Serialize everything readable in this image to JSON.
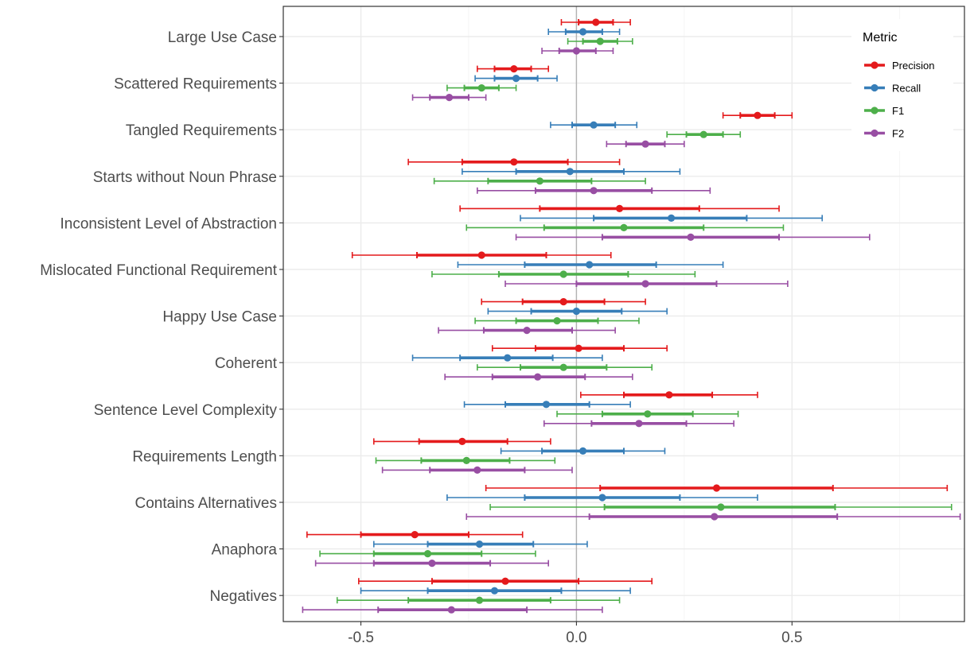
{
  "chart_data": {
    "type": "errorbar",
    "title": "",
    "xlabel": "",
    "ylabel": "",
    "xlim": [
      -0.68,
      0.9
    ],
    "xticks": [
      -0.5,
      0.0,
      0.5
    ],
    "xtick_labels": [
      "-0.5",
      "0.0",
      "0.5"
    ],
    "grid": true,
    "reference_line_x": 0,
    "legend": {
      "title": "Metric",
      "placement": "top-right"
    },
    "categories": [
      "Large Use Case",
      "Scattered Requirements",
      "Tangled Requirements",
      "Starts without Noun Phrase",
      "Inconsistent Level of Abstraction",
      "Mislocated Functional Requirement",
      "Happy Use Case",
      "Coherent",
      "Sentence Level Complexity",
      "Requirements Length",
      "Contains Alternatives",
      "Anaphora",
      "Negatives"
    ],
    "series": [
      {
        "name": "Precision",
        "color": "#E41A1C",
        "points": [
          {
            "estimate": 0.045,
            "inner": [
              0.005,
              0.085
            ],
            "outer": [
              -0.035,
              0.125
            ]
          },
          {
            "estimate": -0.145,
            "inner": [
              -0.19,
              -0.105
            ],
            "outer": [
              -0.23,
              -0.065
            ]
          },
          {
            "estimate": 0.42,
            "inner": [
              0.38,
              0.46
            ],
            "outer": [
              0.34,
              0.5
            ]
          },
          {
            "estimate": -0.145,
            "inner": [
              -0.265,
              -0.02
            ],
            "outer": [
              -0.39,
              0.1
            ]
          },
          {
            "estimate": 0.1,
            "inner": [
              -0.085,
              0.285
            ],
            "outer": [
              -0.27,
              0.47
            ]
          },
          {
            "estimate": -0.22,
            "inner": [
              -0.37,
              -0.07
            ],
            "outer": [
              -0.52,
              0.08
            ]
          },
          {
            "estimate": -0.03,
            "inner": [
              -0.125,
              0.065
            ],
            "outer": [
              -0.22,
              0.16
            ]
          },
          {
            "estimate": 0.005,
            "inner": [
              -0.095,
              0.11
            ],
            "outer": [
              -0.195,
              0.21
            ]
          },
          {
            "estimate": 0.215,
            "inner": [
              0.11,
              0.315
            ],
            "outer": [
              0.01,
              0.42
            ]
          },
          {
            "estimate": -0.265,
            "inner": [
              -0.365,
              -0.16
            ],
            "outer": [
              -0.47,
              -0.06
            ]
          },
          {
            "estimate": 0.325,
            "inner": [
              0.055,
              0.595
            ],
            "outer": [
              -0.21,
              0.86
            ]
          },
          {
            "estimate": -0.375,
            "inner": [
              -0.5,
              -0.25
            ],
            "outer": [
              -0.625,
              -0.125
            ]
          },
          {
            "estimate": -0.165,
            "inner": [
              -0.335,
              0.005
            ],
            "outer": [
              -0.505,
              0.175
            ]
          }
        ]
      },
      {
        "name": "Recall",
        "color": "#377EB8",
        "points": [
          {
            "estimate": 0.015,
            "inner": [
              -0.025,
              0.06
            ],
            "outer": [
              -0.065,
              0.1
            ]
          },
          {
            "estimate": -0.14,
            "inner": [
              -0.19,
              -0.09
            ],
            "outer": [
              -0.235,
              -0.045
            ]
          },
          {
            "estimate": 0.04,
            "inner": [
              -0.01,
              0.09
            ],
            "outer": [
              -0.06,
              0.14
            ]
          },
          {
            "estimate": -0.015,
            "inner": [
              -0.14,
              0.11
            ],
            "outer": [
              -0.265,
              0.24
            ]
          },
          {
            "estimate": 0.22,
            "inner": [
              0.04,
              0.395
            ],
            "outer": [
              -0.13,
              0.57
            ]
          },
          {
            "estimate": 0.03,
            "inner": [
              -0.12,
              0.185
            ],
            "outer": [
              -0.275,
              0.34
            ]
          },
          {
            "estimate": 0.0,
            "inner": [
              -0.105,
              0.105
            ],
            "outer": [
              -0.205,
              0.21
            ]
          },
          {
            "estimate": -0.16,
            "inner": [
              -0.27,
              -0.055
            ],
            "outer": [
              -0.38,
              0.06
            ]
          },
          {
            "estimate": -0.07,
            "inner": [
              -0.165,
              0.03
            ],
            "outer": [
              -0.26,
              0.125
            ]
          },
          {
            "estimate": 0.015,
            "inner": [
              -0.08,
              0.11
            ],
            "outer": [
              -0.175,
              0.205
            ]
          },
          {
            "estimate": 0.06,
            "inner": [
              -0.12,
              0.24
            ],
            "outer": [
              -0.3,
              0.42
            ]
          },
          {
            "estimate": -0.225,
            "inner": [
              -0.345,
              -0.1
            ],
            "outer": [
              -0.47,
              0.025
            ]
          },
          {
            "estimate": -0.19,
            "inner": [
              -0.345,
              -0.035
            ],
            "outer": [
              -0.5,
              0.125
            ]
          }
        ]
      },
      {
        "name": "F1",
        "color": "#4DAF4A",
        "points": [
          {
            "estimate": 0.055,
            "inner": [
              0.015,
              0.095
            ],
            "outer": [
              -0.02,
              0.13
            ]
          },
          {
            "estimate": -0.22,
            "inner": [
              -0.26,
              -0.18
            ],
            "outer": [
              -0.3,
              -0.14
            ]
          },
          {
            "estimate": 0.295,
            "inner": [
              0.255,
              0.34
            ],
            "outer": [
              0.21,
              0.38
            ]
          },
          {
            "estimate": -0.085,
            "inner": [
              -0.205,
              0.035
            ],
            "outer": [
              -0.33,
              0.16
            ]
          },
          {
            "estimate": 0.11,
            "inner": [
              -0.075,
              0.295
            ],
            "outer": [
              -0.255,
              0.48
            ]
          },
          {
            "estimate": -0.03,
            "inner": [
              -0.18,
              0.12
            ],
            "outer": [
              -0.335,
              0.275
            ]
          },
          {
            "estimate": -0.045,
            "inner": [
              -0.14,
              0.05
            ],
            "outer": [
              -0.235,
              0.145
            ]
          },
          {
            "estimate": -0.03,
            "inner": [
              -0.13,
              0.07
            ],
            "outer": [
              -0.23,
              0.175
            ]
          },
          {
            "estimate": 0.165,
            "inner": [
              0.06,
              0.27
            ],
            "outer": [
              -0.045,
              0.375
            ]
          },
          {
            "estimate": -0.255,
            "inner": [
              -0.36,
              -0.155
            ],
            "outer": [
              -0.465,
              -0.05
            ]
          },
          {
            "estimate": 0.335,
            "inner": [
              0.065,
              0.6
            ],
            "outer": [
              -0.2,
              0.87
            ]
          },
          {
            "estimate": -0.345,
            "inner": [
              -0.47,
              -0.22
            ],
            "outer": [
              -0.595,
              -0.095
            ]
          },
          {
            "estimate": -0.225,
            "inner": [
              -0.39,
              -0.06
            ],
            "outer": [
              -0.555,
              0.1
            ]
          }
        ]
      },
      {
        "name": "F2",
        "color": "#984EA3",
        "points": [
          {
            "estimate": 0.0,
            "inner": [
              -0.04,
              0.045
            ],
            "outer": [
              -0.08,
              0.085
            ]
          },
          {
            "estimate": -0.295,
            "inner": [
              -0.34,
              -0.25
            ],
            "outer": [
              -0.38,
              -0.21
            ]
          },
          {
            "estimate": 0.16,
            "inner": [
              0.115,
              0.205
            ],
            "outer": [
              0.07,
              0.25
            ]
          },
          {
            "estimate": 0.04,
            "inner": [
              -0.095,
              0.175
            ],
            "outer": [
              -0.23,
              0.31
            ]
          },
          {
            "estimate": 0.265,
            "inner": [
              0.06,
              0.47
            ],
            "outer": [
              -0.14,
              0.68
            ]
          },
          {
            "estimate": 0.16,
            "inner": [
              0.0,
              0.325
            ],
            "outer": [
              -0.165,
              0.49
            ]
          },
          {
            "estimate": -0.115,
            "inner": [
              -0.215,
              -0.01
            ],
            "outer": [
              -0.32,
              0.09
            ]
          },
          {
            "estimate": -0.09,
            "inner": [
              -0.195,
              0.02
            ],
            "outer": [
              -0.305,
              0.13
            ]
          },
          {
            "estimate": 0.145,
            "inner": [
              0.035,
              0.255
            ],
            "outer": [
              -0.075,
              0.365
            ]
          },
          {
            "estimate": -0.23,
            "inner": [
              -0.34,
              -0.12
            ],
            "outer": [
              -0.45,
              -0.01
            ]
          },
          {
            "estimate": 0.32,
            "inner": [
              0.03,
              0.605
            ],
            "outer": [
              -0.255,
              0.89
            ]
          },
          {
            "estimate": -0.335,
            "inner": [
              -0.47,
              -0.2
            ],
            "outer": [
              -0.605,
              -0.065
            ]
          },
          {
            "estimate": -0.29,
            "inner": [
              -0.46,
              -0.115
            ],
            "outer": [
              -0.635,
              0.06
            ]
          }
        ]
      }
    ]
  }
}
